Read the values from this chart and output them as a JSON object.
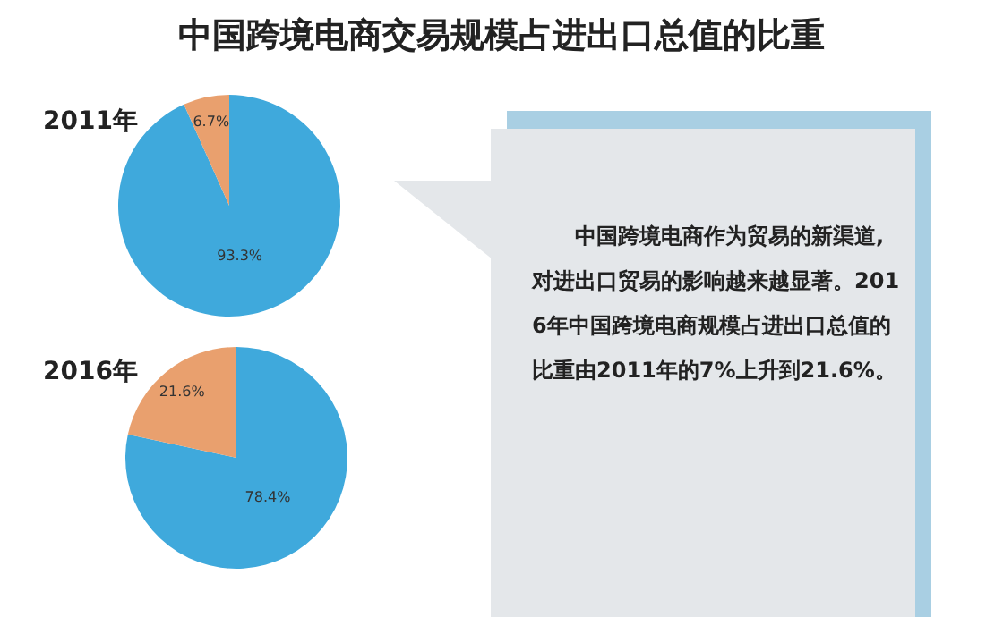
{
  "chart_data": [
    {
      "type": "pie",
      "title": "2011年",
      "categories": [
        null,
        null
      ],
      "values": [
        93.3,
        6.7
      ],
      "colors": [
        "#3fa9dc",
        "#e9a06e"
      ],
      "value_labels": [
        "93.3%",
        "6.7%"
      ]
    },
    {
      "type": "pie",
      "title": "2016年",
      "categories": [
        null,
        null
      ],
      "values": [
        78.4,
        21.6
      ],
      "colors": [
        "#3fa9dc",
        "#e9a06e"
      ],
      "value_labels": [
        "78.4%",
        "21.6%"
      ]
    },
    {
      "type": "other",
      "title": "中国跨境电商交易规模占进出口总值的比重",
      "annotations": [
        "中国跨境电商作为贸易的新渠道,对进出口贸易的影响越来越显著。2016年中国跨境电商规模占进出口总值的比重由2011年的7%上升到21.6%。"
      ]
    }
  ]
}
